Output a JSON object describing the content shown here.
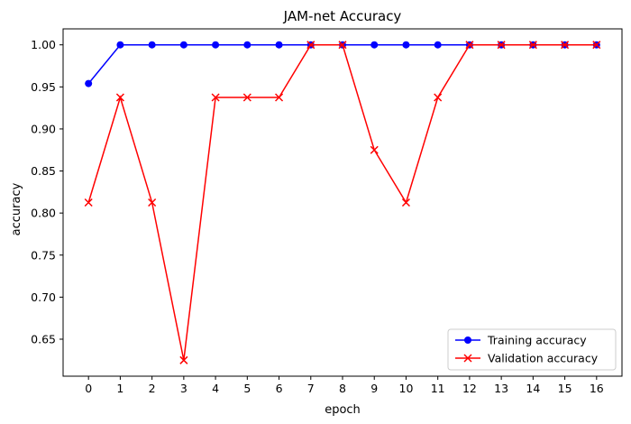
{
  "chart_data": {
    "type": "line",
    "title": "JAM-net Accuracy",
    "xlabel": "epoch",
    "ylabel": "accuracy",
    "x": [
      0,
      1,
      2,
      3,
      4,
      5,
      6,
      7,
      8,
      9,
      10,
      11,
      12,
      13,
      14,
      15,
      16
    ],
    "xlim": [
      -0.8,
      16.8
    ],
    "ylim": [
      0.606,
      1.019
    ],
    "yticks": [
      "0.65",
      "0.70",
      "0.75",
      "0.80",
      "0.85",
      "0.90",
      "0.95",
      "1.00"
    ],
    "grid": false,
    "legend_position": "lower-right",
    "series": [
      {
        "name": "Training accuracy",
        "color": "#0000ff",
        "marker": "circle",
        "values": [
          0.954,
          1.0,
          1.0,
          1.0,
          1.0,
          1.0,
          1.0,
          1.0,
          1.0,
          1.0,
          1.0,
          1.0,
          1.0,
          1.0,
          1.0,
          1.0,
          1.0
        ]
      },
      {
        "name": "Validation accuracy",
        "color": "#ff0000",
        "marker": "x",
        "values": [
          0.8125,
          0.9375,
          0.8125,
          0.625,
          0.9375,
          0.9375,
          0.9375,
          1.0,
          1.0,
          0.875,
          0.8125,
          0.9375,
          1.0,
          1.0,
          1.0,
          1.0,
          1.0
        ]
      }
    ]
  }
}
